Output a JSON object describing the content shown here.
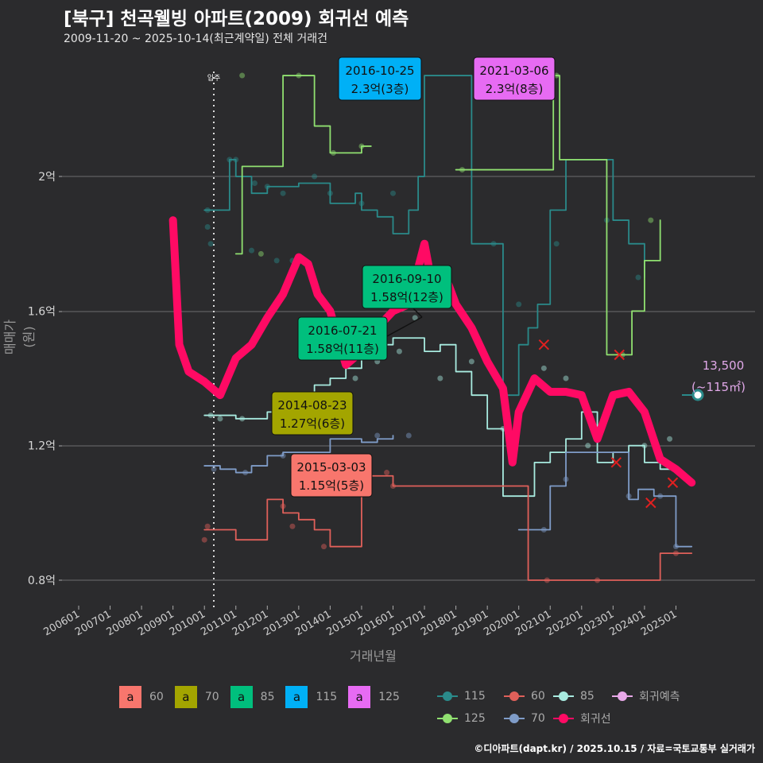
{
  "header": {
    "title": "[북구] 천곡웰빙 아파트(2009) 회귀선 예측",
    "subtitle": "2009-11-20 ~ 2025-10-14(최근계약일) 전체 거래건"
  },
  "footer": "©디아파트(dapt.kr) / 2025.10.15 / 자료=국토교통부 실거래가",
  "axes": {
    "ylabel": "매매가(원)",
    "xlabel": "거래년월",
    "yticks": [
      "2억",
      "1.6억",
      "1.2억",
      "0.8억"
    ],
    "xticks": [
      "200601",
      "200701",
      "200801",
      "200901",
      "201001",
      "201101",
      "201201",
      "201301",
      "201401",
      "201501",
      "201601",
      "201701",
      "201801",
      "201901",
      "202001",
      "202101",
      "202201",
      "202301",
      "202401",
      "202501"
    ],
    "move_in_label": "입주"
  },
  "annotations": [
    {
      "date": "2016-10-25",
      "value": "2.3억(3층)",
      "color": "#00b0f6"
    },
    {
      "date": "2021-03-06",
      "value": "2.3억(8층)",
      "color": "#e76bf3"
    },
    {
      "date": "2016-09-10",
      "value": "1.58억(12층)",
      "color": "#00bf7d"
    },
    {
      "date": "2016-07-21",
      "value": "1.58억(11층)",
      "color": "#00bf7d"
    },
    {
      "date": "2014-08-23",
      "value": "1.27억(6층)",
      "color": "#a3a500"
    },
    {
      "date": "2015-03-03",
      "value": "1.15억(5층)",
      "color": "#f8766d"
    }
  ],
  "prediction": {
    "value": "13,500",
    "area": "(~115㎡)"
  },
  "legend_max": {
    "items": [
      {
        "key": "a",
        "label": "60",
        "color": "#f8766d"
      },
      {
        "key": "a",
        "label": "70",
        "color": "#a3a500"
      },
      {
        "key": "a",
        "label": "85",
        "color": "#00bf7d"
      },
      {
        "key": "a",
        "label": "115",
        "color": "#00b0f6"
      },
      {
        "key": "a",
        "label": "125",
        "color": "#e76bf3"
      }
    ]
  },
  "legend_series": {
    "items": [
      {
        "label": "115",
        "color": "#2a8a8a"
      },
      {
        "label": "60",
        "color": "#e0605a"
      },
      {
        "label": "85",
        "color": "#a8ebe0"
      },
      {
        "label": "회귀예측",
        "color": "#e8a8e8"
      },
      {
        "label": "125",
        "color": "#90e070"
      },
      {
        "label": "70",
        "color": "#7f9cc8"
      },
      {
        "label": "회귀선",
        "color": "#ff0a64"
      }
    ]
  },
  "chart_data": {
    "type": "line",
    "title": "[북구] 천곡웰빙 아파트(2009) 회귀선 예측",
    "subtitle": "2009-11-20 ~ 2025-10-14(최근계약일) 전체 거래건",
    "xlabel": "거래년월",
    "ylabel": "매매가(원)",
    "ylim": [
      0.74,
      2.2
    ],
    "yunit": "억",
    "yticks": [
      0.8,
      1.2,
      1.6,
      2.0
    ],
    "grid": true,
    "legend_position": "bottom",
    "series": [
      {
        "name": "회귀선",
        "color": "#ff0a64",
        "x": [
          2009.0,
          2009.2,
          2009.5,
          2010.0,
          2010.5,
          2011.0,
          2011.5,
          2012.0,
          2012.5,
          2013.0,
          2013.3,
          2013.6,
          2014.0,
          2014.5,
          2015.0,
          2015.5,
          2016.0,
          2016.5,
          2017.0,
          2017.3,
          2017.6,
          2018.0,
          2018.5,
          2019.0,
          2019.5,
          2019.8,
          2020.0,
          2020.5,
          2021.0,
          2021.5,
          2022.0,
          2022.5,
          2023.0,
          2023.5,
          2024.0,
          2024.5,
          2025.0,
          2025.5
        ],
        "values": [
          1.87,
          1.5,
          1.42,
          1.39,
          1.35,
          1.46,
          1.5,
          1.58,
          1.65,
          1.76,
          1.74,
          1.65,
          1.6,
          1.44,
          1.48,
          1.55,
          1.6,
          1.62,
          1.8,
          1.65,
          1.72,
          1.62,
          1.55,
          1.45,
          1.37,
          1.15,
          1.3,
          1.4,
          1.36,
          1.36,
          1.35,
          1.22,
          1.35,
          1.36,
          1.3,
          1.16,
          1.13,
          1.09
        ]
      },
      {
        "name": "115",
        "color": "#2a8a8a",
        "x": [
          2010.0,
          2010.5,
          2010.8,
          2011.0,
          2011.5,
          2012.0,
          2013.0,
          2014.0,
          2014.8,
          2015.0,
          2015.5,
          2016.0,
          2016.5,
          2016.8,
          2017.0,
          2017.5,
          2018.5,
          2019.0,
          2019.5,
          2020.0,
          2020.3,
          2020.6,
          2021.0,
          2021.5,
          2022.0,
          2023.0,
          2023.5,
          2024.0
        ],
        "values": [
          1.9,
          1.9,
          2.05,
          2.0,
          1.95,
          1.97,
          1.98,
          1.92,
          1.95,
          1.9,
          1.88,
          1.83,
          1.9,
          2.0,
          2.3,
          2.3,
          1.8,
          1.8,
          1.35,
          1.5,
          1.55,
          1.62,
          1.9,
          2.05,
          2.05,
          1.87,
          1.8,
          1.7
        ]
      },
      {
        "name": "125",
        "color": "#90e070",
        "x": [
          2011.0,
          2011.2,
          2012.0,
          2012.5,
          2013.0,
          2013.5,
          2014.0,
          2014.5,
          2015.0,
          2015.3
        ],
        "values": [
          1.77,
          2.03,
          2.03,
          2.3,
          2.3,
          2.15,
          2.07,
          2.07,
          2.09,
          2.09
        ]
      },
      {
        "name": "125 (2018~)",
        "color": "#90e070",
        "x": [
          2018.0,
          2018.5,
          2021.1,
          2021.3,
          2022.0,
          2022.8,
          2023.2,
          2023.6,
          2024.0,
          2024.5
        ],
        "values": [
          2.02,
          2.02,
          2.3,
          2.05,
          2.05,
          1.47,
          1.47,
          1.6,
          1.75,
          1.87
        ]
      },
      {
        "name": "85",
        "color": "#a8ebe0",
        "x": [
          2010.0,
          2010.5,
          2011.0,
          2011.5,
          2012.0,
          2012.5,
          2013.0,
          2013.5,
          2014.0,
          2014.5,
          2015.0,
          2015.5,
          2016.0,
          2016.5,
          2017.0,
          2017.5,
          2018.0,
          2018.5,
          2019.0,
          2019.5,
          2020.0,
          2020.5,
          2021.0,
          2021.5,
          2022.0,
          2022.5,
          2023.0,
          2023.5,
          2024.0,
          2024.5,
          2025.0
        ],
        "values": [
          1.29,
          1.29,
          1.28,
          1.28,
          1.3,
          1.3,
          1.35,
          1.38,
          1.4,
          1.43,
          1.48,
          1.5,
          1.52,
          1.52,
          1.48,
          1.5,
          1.42,
          1.35,
          1.25,
          1.05,
          1.05,
          1.15,
          1.18,
          1.22,
          1.3,
          1.15,
          1.18,
          1.2,
          1.15,
          1.13,
          1.12
        ]
      },
      {
        "name": "70",
        "color": "#7f9cc8",
        "x": [
          2010.0,
          2010.5,
          2011.0,
          2011.5,
          2012.0,
          2012.5,
          2013.0,
          2013.5,
          2014.0,
          2014.5,
          2015.0,
          2015.5,
          2016.0
        ],
        "values": [
          1.14,
          1.13,
          1.12,
          1.14,
          1.17,
          1.18,
          1.18,
          1.18,
          1.22,
          1.22,
          1.21,
          1.22,
          1.23
        ]
      },
      {
        "name": "70 (2020~)",
        "color": "#7f9cc8",
        "x": [
          2020.0,
          2020.8,
          2021.0,
          2021.5,
          2022.0,
          2023.5,
          2023.8,
          2024.0,
          2024.3,
          2024.6,
          2025.0,
          2025.5
        ],
        "values": [
          0.95,
          0.95,
          1.08,
          1.18,
          1.18,
          1.04,
          1.07,
          1.07,
          1.05,
          1.05,
          0.9,
          0.9
        ]
      },
      {
        "name": "60",
        "color": "#e0605a",
        "x": [
          2010.0,
          2010.5,
          2011.0,
          2012.0,
          2012.5,
          2013.0,
          2013.5,
          2014.0,
          2015.0,
          2015.5,
          2016.0,
          2020.3,
          2022.5,
          2024.5,
          2025.5
        ],
        "values": [
          0.95,
          0.95,
          0.92,
          1.04,
          1.0,
          0.98,
          0.95,
          0.9,
          1.11,
          1.11,
          1.08,
          0.8,
          0.8,
          0.88,
          0.88
        ]
      }
    ],
    "annotations": [
      {
        "date": "2016-10-25",
        "price": 2.3,
        "floor": 3,
        "area": "115"
      },
      {
        "date": "2021-03-06",
        "price": 2.3,
        "floor": 8,
        "area": "125"
      },
      {
        "date": "2016-09-10",
        "price": 1.58,
        "floor": 12,
        "area": "85"
      },
      {
        "date": "2016-07-21",
        "price": 1.58,
        "floor": 11,
        "area": "85"
      },
      {
        "date": "2014-08-23",
        "price": 1.27,
        "floor": 6,
        "area": "70"
      },
      {
        "date": "2015-03-03",
        "price": 1.15,
        "floor": 5,
        "area": "60"
      }
    ],
    "prediction_point": {
      "value": 1.35,
      "label": "13,500",
      "area": "~115㎡"
    }
  }
}
